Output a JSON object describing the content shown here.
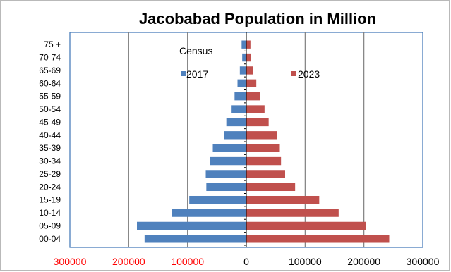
{
  "chart_data": {
    "type": "bar",
    "orientation": "horizontal",
    "subtype": "population-pyramid",
    "title": "Jacobabad Population in Million",
    "categories": [
      "00-04",
      "05-09",
      "10-14",
      "15-19",
      "20-24",
      "25-29",
      "30-34",
      "35-39",
      "40-44",
      "45-49",
      "50-54",
      "55-59",
      "60-64",
      "65-69",
      "70-74",
      "75 +"
    ],
    "series": [
      {
        "name": "2017",
        "color": "#4f81bd",
        "side": "left",
        "values": [
          173000,
          186000,
          127000,
          97000,
          68000,
          69000,
          62000,
          57000,
          38000,
          34000,
          25000,
          20000,
          15000,
          11000,
          7000,
          8000
        ]
      },
      {
        "name": "2023",
        "color": "#c0504d",
        "side": "right",
        "values": [
          243000,
          203000,
          157000,
          124000,
          83000,
          66000,
          59000,
          57000,
          52000,
          38000,
          31000,
          23000,
          17000,
          11000,
          8000,
          7000
        ]
      }
    ],
    "legend_title": "Census",
    "legend_placement": "top, inside plot",
    "xlim": [
      -300000,
      300000
    ],
    "x_ticks": [
      "300000",
      "200000",
      "100000",
      "0",
      "100000",
      "200000",
      "300000"
    ],
    "x_tick_colors": [
      "#ff0000",
      "#ff0000",
      "#ff0000",
      "#000000",
      "#000000",
      "#000000",
      "#000000"
    ],
    "grid": "vertical major gridlines",
    "xlabel": "",
    "ylabel": ""
  }
}
